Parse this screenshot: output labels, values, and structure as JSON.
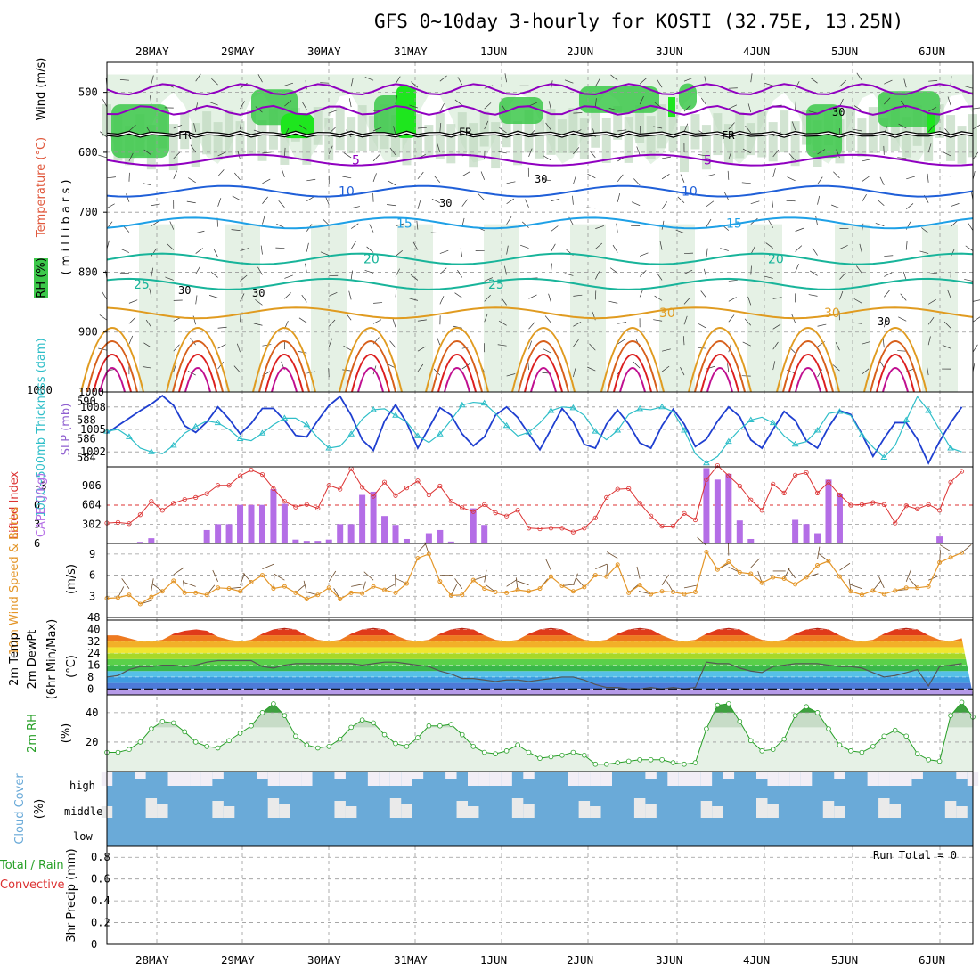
{
  "title": "GFS 0~10day 3-hourly for KOSTI (32.75E, 13.25N)",
  "dates": [
    "28MAY",
    "29MAY",
    "30MAY",
    "31MAY",
    "1JUN",
    "2JUN",
    "3JUN",
    "4JUN",
    "5JUN",
    "6JUN"
  ],
  "colors": {
    "rh_green": "#3cc84a",
    "bright_green": "#1ee61e",
    "frz": "#000000",
    "purple": "#9000c0",
    "blue": "#1f5fd8",
    "cyan_blue": "#1ea0e6",
    "teal": "#18b49a",
    "orange": "#e09b20",
    "dark_orange": "#d7601c",
    "red": "#dc2020",
    "magenta": "#c01090",
    "slp": "#1f3fd0",
    "thick": "#2ebec8",
    "li": "#dc3232",
    "cape": "#b46ee6",
    "wind": "#e49628",
    "rh2m": "#28a028",
    "cloud": "#6aaad8"
  },
  "panel_labels": {
    "upper_rh": "RH (%)",
    "upper_temp": "Temperature (°C)",
    "upper_wind": "Wind (m/s)",
    "upper_axis": "( m i l l i b a r s )",
    "slp": "SLP (mb)",
    "thick": "1000~500mb Thickness (dam)",
    "li": "Lifted Index",
    "cape": "CAPE (J/kg)",
    "wind10": "10m Wind Speed & Barbs",
    "wind10_unit": "(m/s)",
    "temp2m": "2m Temp",
    "dew2m": "2m DewPt",
    "minmax": "(6hr Min/Max)",
    "temp_unit": "(°C)",
    "rh2m": "2m RH",
    "rh_unit": "(%)",
    "cloud": "Cloud Cover",
    "cloud_unit": "(%)",
    "precip_total": "Total / Rain",
    "precip_conv": "Convective",
    "precip_axis": "3hr Precip (mm)",
    "run_total": "Run Total = 0"
  },
  "chart_data": [
    {
      "type": "contour",
      "panel": "upper-air cross-section",
      "ylabel": "millibars",
      "yticks": [
        500,
        600,
        700,
        800,
        900,
        1000
      ],
      "ylim": [
        1000,
        450
      ],
      "frz_label": "FR",
      "isotherms": [
        {
          "label": "5",
          "level_mb": 613
        },
        {
          "label": "10",
          "level_mb": 665
        },
        {
          "label": "15",
          "level_mb": 718
        },
        {
          "label": "20",
          "level_mb": 778
        },
        {
          "label": "25",
          "level_mb": 820
        },
        {
          "label": "30",
          "level_mb": 868
        }
      ],
      "rh_label": "30"
    },
    {
      "type": "line",
      "panel": "SLP / thickness",
      "y_left_ticks": [
        "590",
        "588",
        "586",
        "584"
      ],
      "y_right_ticks": [
        "1008",
        "1005",
        "1002"
      ],
      "series": [
        {
          "name": "SLP",
          "values": [
            1004.5,
            1005.5,
            1006.5,
            1007.5,
            1008.4,
            1009.5,
            1008.2,
            1005.5,
            1004.6,
            1006.0,
            1008.0,
            1006.4,
            1004.4,
            1005.8,
            1007.8,
            1007.8,
            1006.2,
            1004.2,
            1004.0,
            1006.2,
            1008.2,
            1009.4,
            1006.9,
            1003.6,
            1002.2,
            1006.1,
            1008.3,
            1005.9,
            1002.5,
            1005.2,
            1007.9,
            1006.9,
            1004.4,
            1002.8,
            1004.0,
            1006.9,
            1008.0,
            1006.6,
            1004.4,
            1002.3,
            1005.0,
            1007.8,
            1006.0,
            1003.0,
            1002.5,
            1005.7,
            1007.6,
            1005.7,
            1003.2,
            1002.5,
            1005.5,
            1007.7,
            1005.7,
            1002.7,
            1003.7,
            1006.1,
            1008.0,
            1006.7,
            1003.6,
            1002.5,
            1005.0,
            1007.4,
            1006.2,
            1003.5,
            1002.5,
            1005.3,
            1007.5,
            1007.0,
            1004.4,
            1001.4,
            1003.8,
            1005.9,
            1005.9,
            1003.7,
            1000.5,
            1003.4,
            1005.9,
            1008.0
          ]
        },
        {
          "name": "Thickness",
          "values": [
            586.8,
            587.0,
            586.2,
            585.0,
            584.6,
            584.4,
            585.3,
            586.6,
            587.3,
            587.9,
            587.7,
            587.0,
            586.0,
            585.8,
            586.6,
            587.5,
            588.2,
            588.2,
            587.5,
            586.1,
            585.0,
            585.2,
            586.5,
            588.1,
            589.1,
            589.2,
            588.5,
            587.8,
            586.3,
            585.6,
            586.5,
            588.0,
            589.6,
            589.9,
            589.8,
            588.7,
            587.4,
            586.3,
            586.7,
            587.7,
            589.0,
            589.4,
            589.3,
            588.5,
            586.8,
            585.9,
            586.9,
            588.6,
            589.2,
            589.1,
            589.4,
            588.9,
            586.9,
            584.4,
            583.4,
            584.1,
            585.7,
            587.0,
            588.0,
            588.3,
            587.7,
            586.3,
            585.4,
            585.7,
            586.9,
            588.7,
            588.9,
            588.5,
            586.4,
            585.1,
            584.0,
            585.3,
            588.0,
            590.5,
            589.0,
            587.0,
            585.0,
            584.6
          ]
        }
      ]
    },
    {
      "type": "bar+line",
      "panel": "Lifted Index / CAPE",
      "y_left_ticks": [
        "-3",
        "0",
        "3",
        "6"
      ],
      "y_right_ticks": [
        "906",
        "604",
        "302"
      ],
      "series": [
        {
          "name": "Lifted Index",
          "values": [
            2.8,
            2.7,
            2.9,
            1.5,
            -0.6,
            0.8,
            -0.3,
            -0.9,
            -1.2,
            -1.8,
            -3.1,
            -3.1,
            -4.6,
            -5.5,
            -4.8,
            -2.6,
            -0.6,
            0.3,
            -0.1,
            0.5,
            -3.1,
            -2.5,
            -5.7,
            -2.8,
            -1.4,
            -3.6,
            -1.5,
            -2.7,
            -3.8,
            -1.6,
            -3.0,
            -0.6,
            0.4,
            1.0,
            -0.1,
            1.2,
            1.7,
            0.8,
            3.6,
            3.7,
            3.6,
            3.6,
            4.2,
            3.6,
            2.0,
            -1.2,
            -2.5,
            -2.6,
            -0.3,
            1.7,
            3.3,
            3.3,
            1.3,
            2.3,
            -4.0,
            -6.2,
            -4.6,
            -3.0,
            -0.8,
            0.8,
            -3.3,
            -1.9,
            -4.7,
            -5.1,
            -1.9,
            -3.6,
            -1.6,
            0.0,
            -0.1,
            -0.4,
            -0.1,
            2.8,
            0.1,
            0.6,
            -0.1,
            0.8,
            -3.6,
            -5.3
          ]
        },
        {
          "name": "CAPE",
          "values": [
            0,
            8,
            8,
            25,
            82,
            12,
            10,
            0,
            0,
            210,
            302,
            302,
            604,
            604,
            604,
            850,
            620,
            60,
            40,
            40,
            60,
            302,
            302,
            760,
            810,
            430,
            290,
            70,
            0,
            160,
            210,
            30,
            0,
            550,
            290,
            8,
            10,
            5,
            0,
            0,
            0,
            0,
            0,
            0,
            0,
            0,
            0,
            0,
            0,
            0,
            0,
            0,
            0,
            0,
            1180,
            1000,
            1090,
            360,
            70,
            10,
            0,
            0,
            370,
            304,
            160,
            1000,
            780,
            0,
            0,
            0,
            0,
            0,
            10,
            10,
            0,
            110,
            0,
            0
          ]
        }
      ]
    },
    {
      "type": "line",
      "panel": "10m wind",
      "y_ticks": [
        "9",
        "6",
        "3"
      ],
      "series": [
        {
          "name": "10m Wind Speed",
          "values": [
            2.7,
            2.8,
            3.2,
            1.9,
            2.9,
            3.7,
            5.2,
            3.5,
            3.5,
            3.2,
            4.2,
            4.1,
            3.7,
            5.0,
            6.0,
            4.1,
            4.4,
            3.5,
            2.6,
            3.2,
            4.2,
            2.6,
            3.5,
            3.4,
            4.4,
            3.9,
            3.5,
            4.8,
            8.4,
            9.0,
            5.1,
            3.1,
            3.2,
            5.3,
            4.1,
            3.6,
            3.5,
            3.9,
            3.7,
            4.1,
            5.8,
            4.5,
            3.7,
            4.3,
            6.0,
            5.8,
            7.5,
            3.5,
            4.6,
            3.3,
            3.7,
            3.6,
            3.3,
            3.6,
            9.3,
            6.8,
            7.9,
            6.4,
            6.2,
            4.9,
            5.7,
            5.5,
            4.7,
            5.7,
            7.4,
            8.0,
            5.8,
            3.7,
            3.2,
            3.8,
            3.3,
            3.8,
            4.2,
            4.2,
            4.4,
            7.8,
            8.5,
            9.2
          ]
        }
      ]
    },
    {
      "type": "line",
      "panel": "2m temperature",
      "y_ticks": [
        "48",
        "40",
        "32",
        "24",
        "16",
        "8",
        "0"
      ],
      "series": [
        {
          "name": "2m Temp",
          "values": [
            36,
            36,
            34,
            32,
            32,
            33,
            37,
            39,
            40,
            39,
            35,
            33,
            32,
            33,
            37,
            40,
            41,
            40,
            36,
            33,
            32,
            33,
            37,
            40,
            41,
            40,
            36,
            33,
            32,
            33,
            37,
            40,
            41,
            40,
            36,
            33,
            32,
            33,
            37,
            40,
            41,
            40,
            36,
            33,
            32,
            33,
            37,
            40,
            41,
            40,
            36,
            33,
            32,
            33,
            37,
            40,
            41,
            40,
            36,
            33,
            32,
            33,
            37,
            40,
            41,
            40,
            36,
            33,
            32,
            33,
            37,
            40,
            41,
            40,
            36,
            33,
            32,
            34
          ]
        },
        {
          "name": "2m DewPt",
          "values": [
            8,
            9,
            13,
            15,
            15,
            16,
            16,
            15,
            16,
            18,
            19,
            19,
            19,
            19,
            15,
            14,
            16,
            17,
            17,
            17,
            17,
            17,
            17,
            16,
            17,
            18,
            18,
            17,
            16,
            15,
            12,
            10,
            7,
            7,
            6,
            5,
            6,
            6,
            5,
            6,
            7,
            8,
            8,
            6,
            3,
            1,
            1,
            0,
            0,
            1,
            0,
            1,
            0,
            1,
            18,
            17,
            17,
            14,
            12,
            11,
            15,
            16,
            17,
            17,
            17,
            16,
            15,
            15,
            14,
            11,
            8,
            9,
            11,
            13,
            2,
            15,
            16,
            17
          ]
        }
      ]
    },
    {
      "type": "area",
      "panel": "2m RH",
      "y_ticks": [
        "40",
        "20"
      ],
      "series": [
        {
          "name": "2m RH",
          "values": [
            13,
            13,
            15,
            20,
            29,
            34,
            33,
            27,
            20,
            17,
            16,
            21,
            26,
            31,
            40,
            46,
            38,
            24,
            18,
            16,
            17,
            22,
            30,
            35,
            33,
            25,
            19,
            17,
            23,
            31,
            31,
            32,
            25,
            17,
            13,
            12,
            14,
            18,
            13,
            9,
            10,
            11,
            13,
            11,
            5,
            5,
            6,
            7,
            8,
            8,
            8,
            6,
            5,
            6,
            29,
            45,
            46,
            34,
            21,
            14,
            15,
            22,
            38,
            44,
            40,
            29,
            18,
            14,
            13,
            17,
            24,
            28,
            24,
            12,
            8,
            7,
            38,
            47,
            37
          ]
        }
      ]
    },
    {
      "type": "heatmap",
      "panel": "Cloud Cover",
      "rows": [
        "high",
        "middle",
        "low"
      ]
    },
    {
      "type": "bar",
      "panel": "3hr Precip",
      "ylabel": "3hr Precip (mm)",
      "y_ticks": [
        "0.8",
        "0.6",
        "0.4",
        "0.2",
        "0"
      ],
      "ylim": [
        0,
        0.9
      ],
      "values": []
    }
  ]
}
